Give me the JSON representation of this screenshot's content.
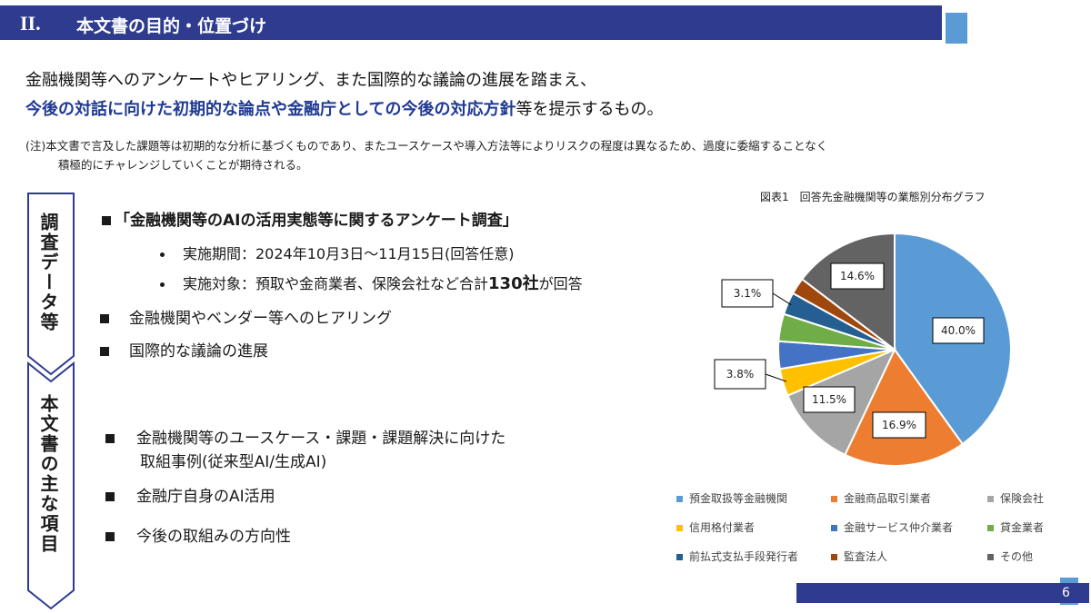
{
  "header": {
    "section_number": "II.",
    "title": "本文書の目的・位置づけ"
  },
  "intro": {
    "line1": "金融機関等へのアンケートやヒアリング、また国際的な議論の進展を踏まえ、",
    "line2_highlight": "今後の対話に向けた初期的な論点や金融庁としての今後の対応方針",
    "line2_rest": "等を提示するもの。",
    "note_line1": "(注)本文書で言及した課題等は初期的な分析に基づくものであり、またユースケースや導入方法等によりリスクの程度は異なるため、過度に委縮することなく",
    "note_line2": "積極的にチャレンジしていくことが期待される。"
  },
  "side_labels": {
    "upper": "調査データ等",
    "lower": "本文書の主な項目"
  },
  "survey": {
    "title": "「金融機関等のAIの活用実態等に関するアンケート調査」",
    "period": "実施期間：2024年10月3日～11月15日(回答任意)",
    "target_prefix": "実施対象：預取や金商業者、保険会社など合計",
    "target_count": "130社",
    "target_suffix": "が回答",
    "items": [
      "金融機関やベンダー等へのヒアリング",
      "国際的な議論の進展"
    ]
  },
  "main_items": {
    "item1_line1": "金融機関等のユースケース・課題・課題解決に向けた",
    "item1_line2": "取組事例(従来型AI/生成AI)",
    "item2": "金融庁自身のAI活用",
    "item3": "今後の取組みの方向性"
  },
  "chart_data": {
    "type": "pie",
    "title": "図表1　回答先金融機関等の業態別分布グラフ",
    "categories": [
      "預金取扱等金融機関",
      "金融商品取引業者",
      "保険会社",
      "信用格付業者",
      "金融サービス仲介業者",
      "貸金業者",
      "前払式支払手段発行者",
      "監査法人",
      "その他"
    ],
    "values": [
      40.0,
      16.9,
      11.5,
      3.8,
      3.8,
      3.8,
      3.1,
      2.3,
      14.6
    ],
    "colors": [
      "#5b9bd5",
      "#ed7d31",
      "#a5a5a5",
      "#ffc000",
      "#4472c4",
      "#70ad47",
      "#255e91",
      "#9e480e",
      "#636363"
    ],
    "labels_shown": {
      "預金取扱等金融機関": "40.0%",
      "金融商品取引業者": "16.9%",
      "保険会社": "11.5%",
      "信用格付業者": "3.8%",
      "前払式支払手段発行者": "3.1%",
      "その他": "14.6%"
    }
  },
  "footer": {
    "page_number": "6"
  }
}
